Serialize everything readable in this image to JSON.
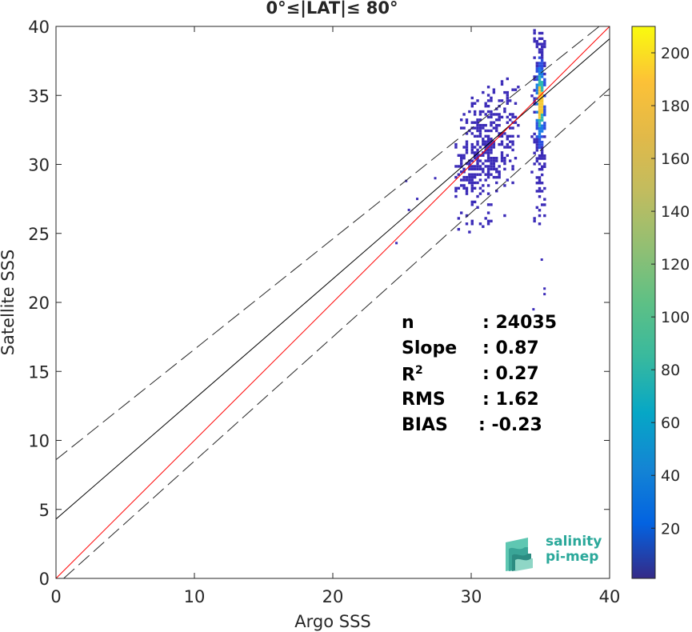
{
  "chart_data": {
    "type": "scatter",
    "title": "0°≤|LAT|≤ 80°",
    "xlabel": "Argo SSS",
    "ylabel": "Satellite SSS",
    "xlim": [
      0,
      40
    ],
    "ylim": [
      0,
      40
    ],
    "xticks": [
      0,
      10,
      20,
      30,
      40
    ],
    "yticks": [
      0,
      5,
      10,
      15,
      20,
      25,
      30,
      35,
      40
    ],
    "grid": false,
    "lines": {
      "identity": {
        "slope": 1,
        "intercept": 0,
        "color": "#ff0000"
      },
      "fit": {
        "slope": 0.87,
        "intercept": 4.3,
        "color": "#000000"
      },
      "upper_bound": {
        "slope": 0.8,
        "intercept": 8.6,
        "style": "dashed"
      },
      "lower_bound": {
        "slope": 0.9,
        "intercept": -0.5,
        "style": "dashed"
      }
    },
    "density_clusters": [
      {
        "x_range": [
          28.8,
          33.5
        ],
        "y_range": [
          25.0,
          36.5
        ],
        "density": "low-medium"
      },
      {
        "x_range": [
          34.3,
          35.4
        ],
        "y_range": [
          25.2,
          40.0
        ],
        "density": "high",
        "peak_x": 35.0,
        "peak_y": 34.5
      }
    ],
    "scattered_points": [
      {
        "x": 25.3,
        "y": 28.8
      },
      {
        "x": 25.5,
        "y": 26.7
      },
      {
        "x": 26.1,
        "y": 27.5
      },
      {
        "x": 27.4,
        "y": 29.0
      },
      {
        "x": 24.6,
        "y": 24.3
      },
      {
        "x": 35.3,
        "y": 21.0
      },
      {
        "x": 35.3,
        "y": 20.6
      },
      {
        "x": 35.1,
        "y": 23.1
      },
      {
        "x": 34.5,
        "y": 19.5
      }
    ],
    "colorbar": {
      "min": 1,
      "max": 210,
      "ticks": [
        20,
        40,
        60,
        80,
        100,
        120,
        140,
        160,
        180,
        200
      ],
      "colormap": "parula"
    },
    "stats": [
      {
        "label": "n",
        "value": ": 24035"
      },
      {
        "label": "Slope",
        "value": ": 0.87"
      },
      {
        "label": "R",
        "sup": "2",
        "value": ": 0.27"
      },
      {
        "label": "RMS",
        "value": ": 1.62"
      },
      {
        "label": "BIAS",
        "value": ": -0.23"
      }
    ]
  },
  "logo": {
    "line1": "salinity",
    "line2": "pi-mep"
  }
}
